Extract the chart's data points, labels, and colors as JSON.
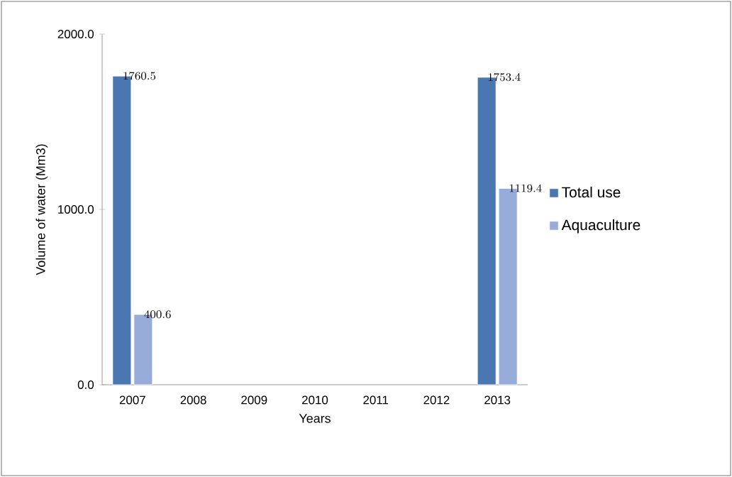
{
  "chart_data": {
    "type": "bar",
    "xlabel": "Years",
    "ylabel": "Volume of water (Mm3)",
    "categories": [
      "2007",
      "2008",
      "2009",
      "2010",
      "2011",
      "2012",
      "2013"
    ],
    "series": [
      {
        "name": "Total use",
        "color": "#4a76b2",
        "values": [
          1760.5,
          null,
          null,
          null,
          null,
          null,
          1753.4
        ]
      },
      {
        "name": "Aquaculture",
        "color": "#98acd9",
        "values": [
          400.6,
          null,
          null,
          null,
          null,
          null,
          1119.4
        ]
      }
    ],
    "ylim": [
      0,
      2000
    ],
    "yticks": [
      {
        "value": 0,
        "label": "0.0"
      },
      {
        "value": 1000,
        "label": "1000.0"
      },
      {
        "value": 2000,
        "label": "2000.0"
      }
    ],
    "data_labels": true,
    "legend": "right",
    "grid": false
  }
}
